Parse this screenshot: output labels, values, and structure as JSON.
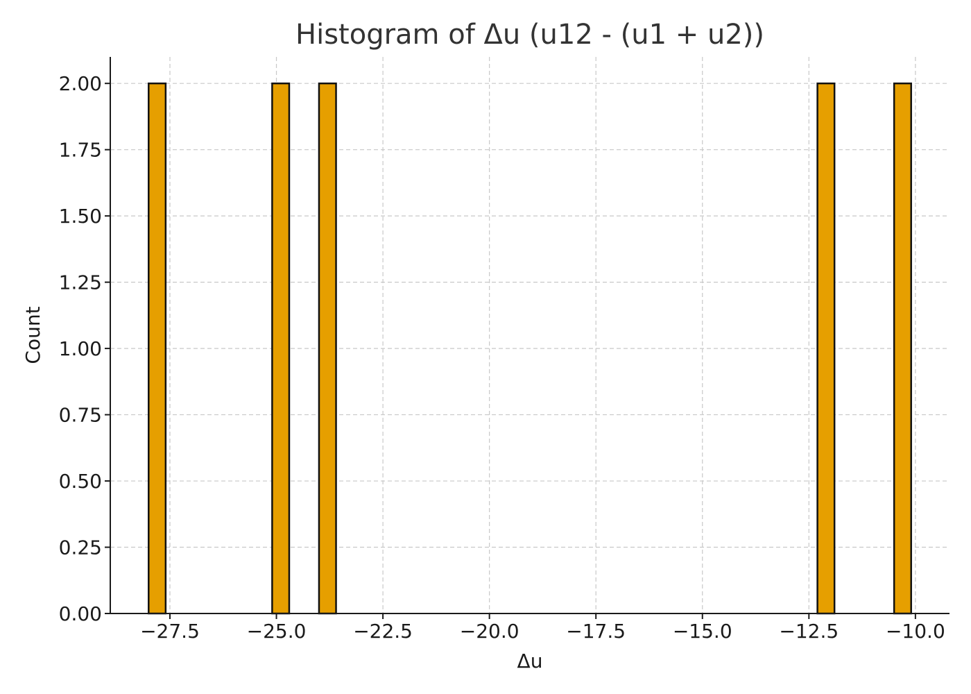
{
  "chart_data": {
    "type": "histogram",
    "title": "Histogram of Δu (u12 - (u1 + u2))",
    "xlabel": "Δu",
    "ylabel": "Count",
    "xlim": [
      -28.9,
      -9.2
    ],
    "ylim": [
      0,
      2.1
    ],
    "grid": true,
    "bar_color": "#E69F00",
    "bins": [
      {
        "start": -28.0,
        "end": -27.6,
        "count": 2
      },
      {
        "start": -25.1,
        "end": -24.7,
        "count": 2
      },
      {
        "start": -24.0,
        "end": -23.6,
        "count": 2
      },
      {
        "start": -12.3,
        "end": -11.9,
        "count": 2
      },
      {
        "start": -10.5,
        "end": -10.1,
        "count": 2
      }
    ],
    "x_ticks": [
      -27.5,
      -25.0,
      -22.5,
      -20.0,
      -17.5,
      -15.0,
      -12.5,
      -10.0
    ],
    "x_tick_labels": [
      "−27.5",
      "−25.0",
      "−22.5",
      "−20.0",
      "−17.5",
      "−15.0",
      "−12.5",
      "−10.0"
    ],
    "y_ticks": [
      0,
      0.25,
      0.5,
      0.75,
      1.0,
      1.25,
      1.5,
      1.75,
      2.0
    ],
    "y_tick_labels": [
      "0.00",
      "0.25",
      "0.50",
      "0.75",
      "1.00",
      "1.25",
      "1.50",
      "1.75",
      "2.00"
    ]
  }
}
